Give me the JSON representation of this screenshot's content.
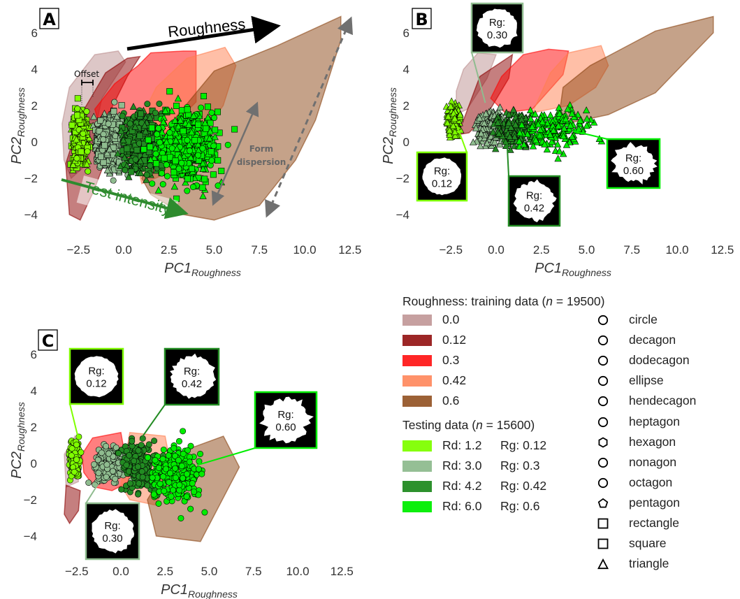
{
  "colors": {
    "training": {
      "0.0": "#bc8f8f",
      "0.12": "#8b0000",
      "0.3": "#ff0000",
      "0.42": "#ff7f50",
      "0.6": "#8b4513"
    },
    "testing": {
      "1.2": "#7fff00",
      "3.0": "#8fbc8f",
      "4.2": "#228b22",
      "6.0": "#00ee00"
    },
    "roughness_arrow": "#000000",
    "intensity_arrow": "#2e8b2e",
    "dispersion_arrow": "#707070"
  },
  "chart_data": [
    {
      "type": "scatter",
      "panel": "A",
      "xlabel": "PC1",
      "xlabel_sub": "Roughness",
      "ylabel": "PC2",
      "ylabel_sub": "Roughness",
      "xticks": [
        "−2.5",
        "0.0",
        "2.5",
        "5.0",
        "7.5",
        "10.0",
        "12.5"
      ],
      "xtick_values": [
        -2.5,
        0,
        2.5,
        5,
        7.5,
        10,
        12.5
      ],
      "yticks": [
        "−4",
        "−2",
        "0",
        "2",
        "4",
        "6"
      ],
      "ytick_values": [
        -4,
        -2,
        0,
        2,
        4,
        6
      ],
      "markers": [
        "square",
        "triangle",
        "circle"
      ],
      "training_hulls": [
        {
          "rg": "0.0",
          "points": [
            [
              -3.4,
              1.0
            ],
            [
              -3.0,
              3.0
            ],
            [
              -1.6,
              4.8
            ],
            [
              -0.3,
              5.0
            ],
            [
              0.1,
              4.4
            ],
            [
              -1.2,
              2.4
            ],
            [
              -2.0,
              -1.2
            ],
            [
              -2.9,
              -2.0
            ],
            [
              -3.3,
              -1.0
            ]
          ]
        },
        {
          "rg": "0.12",
          "points": [
            [
              -3.0,
              -4.0
            ],
            [
              -2.4,
              -4.3
            ],
            [
              -1.7,
              -2.8
            ],
            [
              -1.0,
              -1.0
            ],
            [
              -0.8,
              1.6
            ],
            [
              0.2,
              3.6
            ],
            [
              0.9,
              4.7
            ],
            [
              0.2,
              4.6
            ],
            [
              -1.0,
              3.8
            ],
            [
              -2.3,
              1.6
            ],
            [
              -3.2,
              -1.2
            ]
          ]
        },
        {
          "rg": "0.3",
          "points": [
            [
              -1.6,
              1.8
            ],
            [
              -0.5,
              3.2
            ],
            [
              0.8,
              4.2
            ],
            [
              1.5,
              4.9
            ],
            [
              3.3,
              5.0
            ],
            [
              4.0,
              5.0
            ],
            [
              4.0,
              2.2
            ],
            [
              2.2,
              0.4
            ],
            [
              0.6,
              -1.2
            ],
            [
              -1.0,
              -0.2
            ]
          ]
        },
        {
          "rg": "0.42",
          "points": [
            [
              0.4,
              0.2
            ],
            [
              1.8,
              3.0
            ],
            [
              3.5,
              4.6
            ],
            [
              5.6,
              5.2
            ],
            [
              6.2,
              4.2
            ],
            [
              5.5,
              2.0
            ],
            [
              3.0,
              -1.5
            ],
            [
              1.0,
              -2.3
            ]
          ]
        },
        {
          "rg": "0.6",
          "points": [
            [
              1.0,
              -2.0
            ],
            [
              3.0,
              1.5
            ],
            [
              5.0,
              3.9
            ],
            [
              8.5,
              5.3
            ],
            [
              12.0,
              6.9
            ],
            [
              12.0,
              5.6
            ],
            [
              10.6,
              1.2
            ],
            [
              9.5,
              -1.0
            ],
            [
              7.5,
              -3.5
            ],
            [
              5.0,
              -4.3
            ],
            [
              3.3,
              -4.0
            ],
            [
              1.5,
              -2.9
            ]
          ]
        }
      ],
      "testing_clusters": [
        {
          "rd": "1.2",
          "rg": "0.12",
          "x_range": [
            -3.0,
            -1.8
          ],
          "y_range": [
            -2.0,
            2.4
          ]
        },
        {
          "rd": "3.0",
          "rg": "0.3",
          "x_range": [
            -2.0,
            0.5
          ],
          "y_range": [
            -2.2,
            2.3
          ]
        },
        {
          "rd": "4.2",
          "rg": "0.42",
          "x_range": [
            -0.5,
            2.6
          ],
          "y_range": [
            -2.5,
            2.3
          ]
        },
        {
          "rd": "6.0",
          "rg": "0.6",
          "x_range": [
            0.8,
            6.2
          ],
          "y_range": [
            -3.4,
            3.0
          ]
        }
      ],
      "annotations": {
        "roughness": "Roughness",
        "test_intensity": "Test intensity",
        "offset": "Offset",
        "form_dispersion_1": "Form",
        "form_dispersion_2": "dispersion"
      }
    },
    {
      "type": "scatter",
      "panel": "B",
      "xlabel": "PC1",
      "xlabel_sub": "Roughness",
      "ylabel": "PC2",
      "ylabel_sub": "Roughness",
      "xticks": [
        "−2.5",
        "0.0",
        "2.5",
        "5.0",
        "7.5",
        "10.0",
        "12.5"
      ],
      "xtick_values": [
        -2.5,
        0,
        2.5,
        5,
        7.5,
        10,
        12.5
      ],
      "yticks": [
        "−4",
        "−2",
        "0",
        "2",
        "4",
        "6"
      ],
      "ytick_values": [
        -4,
        -2,
        0,
        2,
        4,
        6
      ],
      "markers": [
        "triangle"
      ],
      "training_hulls": [
        {
          "rg": "0.0",
          "points": [
            [
              -2.2,
              2.8
            ],
            [
              -1.8,
              4.0
            ],
            [
              -1.0,
              4.9
            ],
            [
              0.0,
              4.8
            ],
            [
              -0.5,
              3.5
            ],
            [
              -1.6,
              1.8
            ],
            [
              -2.2,
              1.5
            ]
          ]
        },
        {
          "rg": "0.12",
          "points": [
            [
              -2.1,
              0.4
            ],
            [
              -1.5,
              2.0
            ],
            [
              -0.9,
              3.6
            ],
            [
              0.9,
              4.8
            ],
            [
              0.7,
              3.5
            ],
            [
              -0.5,
              1.5
            ],
            [
              -1.5,
              0.5
            ]
          ]
        },
        {
          "rg": "0.3",
          "points": [
            [
              -0.3,
              2.4
            ],
            [
              0.3,
              3.6
            ],
            [
              1.5,
              4.8
            ],
            [
              2.9,
              5.1
            ],
            [
              4.0,
              5.0
            ],
            [
              3.7,
              3.7
            ],
            [
              2.0,
              1.8
            ],
            [
              0.5,
              1.6
            ]
          ]
        },
        {
          "rg": "0.42",
          "points": [
            [
              2.0,
              1.6
            ],
            [
              3.0,
              3.8
            ],
            [
              4.0,
              4.9
            ],
            [
              5.8,
              5.3
            ],
            [
              6.2,
              4.2
            ],
            [
              5.5,
              3.0
            ],
            [
              4.0,
              2.0
            ]
          ]
        },
        {
          "rg": "0.6",
          "points": [
            [
              3.4,
              0.9
            ],
            [
              3.7,
              3.0
            ],
            [
              5.2,
              4.2
            ],
            [
              8.8,
              6.1
            ],
            [
              12.0,
              6.9
            ],
            [
              12.0,
              6.0
            ],
            [
              8.8,
              2.7
            ],
            [
              6.2,
              1.5
            ]
          ]
        }
      ],
      "testing_clusters": [
        {
          "rd": "1.2",
          "rg": "0.12",
          "x_range": [
            -2.9,
            -1.8
          ],
          "y_range": [
            0.0,
            2.4
          ]
        },
        {
          "rd": "3.0",
          "rg": "0.3",
          "x_range": [
            -1.5,
            0.8
          ],
          "y_range": [
            -0.5,
            2.3
          ]
        },
        {
          "rd": "4.2",
          "rg": "0.42",
          "x_range": [
            -0.5,
            2.5
          ],
          "y_range": [
            -0.8,
            2.2
          ]
        },
        {
          "rd": "6.0",
          "rg": "0.6",
          "x_range": [
            0.5,
            6.0
          ],
          "y_range": [
            -1.0,
            2.5
          ]
        }
      ],
      "insets": [
        {
          "label": "Rg:",
          "value": "0.30",
          "rd": "3.0",
          "anchor": [
            -0.6,
            2.15
          ]
        },
        {
          "label": "Rg:",
          "value": "0.12",
          "rd": "1.2",
          "anchor": [
            -2.2,
            1.0
          ]
        },
        {
          "label": "Rg:",
          "value": "0.42",
          "rd": "4.2",
          "anchor": [
            0.6,
            0.0
          ]
        },
        {
          "label": "Rg:",
          "value": "0.60",
          "rd": "6.0",
          "anchor": [
            4.25,
            0.6
          ]
        }
      ]
    },
    {
      "type": "scatter",
      "panel": "C",
      "xlabel": "PC1",
      "xlabel_sub": "Roughness",
      "ylabel": "PC2",
      "ylabel_sub": "Roughness",
      "xticks": [
        "−2.5",
        "0.0",
        "2.5",
        "5.0",
        "7.5",
        "10.0",
        "12.5"
      ],
      "xtick_values": [
        -2.5,
        0,
        2.5,
        5,
        7.5,
        10,
        12.5
      ],
      "yticks": [
        "−4",
        "−2",
        "0",
        "2",
        "4",
        "6"
      ],
      "ytick_values": [
        -4,
        -2,
        0,
        2,
        4,
        6
      ],
      "markers": [
        "circle"
      ],
      "training_hulls": [
        {
          "rg": "0.0",
          "points": [
            [
              -3.2,
              0.5
            ],
            [
              -2.6,
              1.5
            ],
            [
              -2.4,
              -1.0
            ],
            [
              -3.1,
              -1.3
            ]
          ]
        },
        {
          "rg": "0.12",
          "points": [
            [
              -3.1,
              -1.2
            ],
            [
              -2.3,
              -1.5
            ],
            [
              -2.4,
              -2.6
            ],
            [
              -2.9,
              -3.3
            ],
            [
              -3.2,
              -2.8
            ]
          ]
        },
        {
          "rg": "0.3",
          "points": [
            [
              -2.2,
              0.5
            ],
            [
              -1.6,
              1.4
            ],
            [
              0.0,
              1.7
            ],
            [
              0.5,
              -1.0
            ],
            [
              -0.5,
              -1.5
            ],
            [
              -1.5,
              -1.3
            ],
            [
              -2.1,
              -0.5
            ]
          ]
        },
        {
          "rg": "0.42",
          "points": [
            [
              0.0,
              -1.2
            ],
            [
              0.5,
              1.7
            ],
            [
              2.5,
              1.5
            ],
            [
              2.8,
              0.0
            ],
            [
              2.0,
              -2.3
            ],
            [
              0.5,
              -2.0
            ]
          ]
        },
        {
          "rg": "0.6",
          "points": [
            [
              1.5,
              -2.0
            ],
            [
              2.0,
              -4.0
            ],
            [
              4.5,
              -4.3
            ],
            [
              6.7,
              -0.2
            ],
            [
              5.8,
              1.5
            ],
            [
              3.0,
              0.5
            ]
          ]
        }
      ],
      "testing_clusters": [
        {
          "rd": "1.2",
          "rg": "0.12",
          "x_range": [
            -3.0,
            -2.2
          ],
          "y_range": [
            -1.2,
            1.6
          ]
        },
        {
          "rd": "3.0",
          "rg": "0.3",
          "x_range": [
            -2.0,
            1.0
          ],
          "y_range": [
            -1.6,
            1.5
          ]
        },
        {
          "rd": "4.2",
          "rg": "0.42",
          "x_range": [
            -0.5,
            2.5
          ],
          "y_range": [
            -2.1,
            1.9
          ]
        },
        {
          "rd": "6.0",
          "rg": "0.6",
          "x_range": [
            1.0,
            5.2
          ],
          "y_range": [
            -3.1,
            1.9
          ]
        }
      ],
      "insets": [
        {
          "label": "Rg:",
          "value": "0.12",
          "rd": "1.2",
          "anchor": [
            -2.45,
            1.55
          ]
        },
        {
          "label": "Rg:",
          "value": "0.42",
          "rd": "4.2",
          "anchor": [
            1.07,
            1.27
          ]
        },
        {
          "label": "Rg:",
          "value": "0.60",
          "rd": "6.0",
          "anchor": [
            4.3,
            -0.1
          ]
        },
        {
          "label": "Rg:",
          "value": "0.30",
          "rd": "3.0",
          "anchor": [
            -1.3,
            -1.15
          ]
        }
      ]
    }
  ],
  "legend": {
    "training_title_pre": "Roughness: training data (",
    "training_title_n": "n",
    "training_title_post": " = 19500)",
    "training": [
      {
        "key": "0.0",
        "label": "0.0"
      },
      {
        "key": "0.12",
        "label": "0.12"
      },
      {
        "key": "0.3",
        "label": "0.3"
      },
      {
        "key": "0.42",
        "label": "0.42"
      },
      {
        "key": "0.6",
        "label": "0.6"
      }
    ],
    "testing_title_pre": "Testing data (",
    "testing_title_n": "n",
    "testing_title_post": " = 15600)",
    "testing": [
      {
        "key": "1.2",
        "rd": "Rd: 1.2",
        "rg": "Rg: 0.12"
      },
      {
        "key": "3.0",
        "rd": "Rd: 3.0",
        "rg": "Rg: 0.3"
      },
      {
        "key": "4.2",
        "rd": "Rd: 4.2",
        "rg": "Rg: 0.42"
      },
      {
        "key": "6.0",
        "rd": "Rd: 6.0",
        "rg": "Rg: 0.6"
      }
    ],
    "shapes": [
      {
        "label": "circle",
        "icon": "circle"
      },
      {
        "label": "decagon",
        "icon": "circle"
      },
      {
        "label": "dodecagon",
        "icon": "circle"
      },
      {
        "label": "ellipse",
        "icon": "circle"
      },
      {
        "label": "hendecagon",
        "icon": "circle"
      },
      {
        "label": "heptagon",
        "icon": "circle"
      },
      {
        "label": "hexagon",
        "icon": "hexagon"
      },
      {
        "label": "nonagon",
        "icon": "circle"
      },
      {
        "label": "octagon",
        "icon": "circle"
      },
      {
        "label": "pentagon",
        "icon": "pentagon"
      },
      {
        "label": "rectangle",
        "icon": "square"
      },
      {
        "label": "square",
        "icon": "square"
      },
      {
        "label": "triangle",
        "icon": "triangle"
      }
    ]
  }
}
